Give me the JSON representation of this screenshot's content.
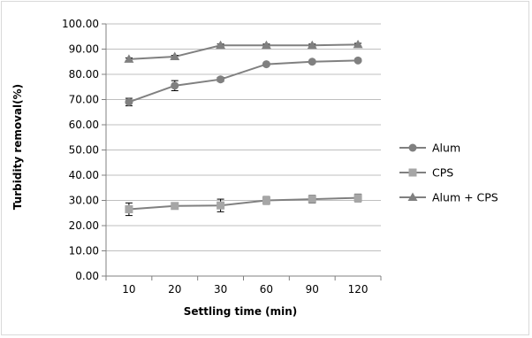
{
  "chart_data": {
    "type": "line",
    "title": "",
    "xlabel": "Settling time (min)",
    "ylabel": "Turbidity removal(%)",
    "categories": [
      "10",
      "20",
      "30",
      "60",
      "90",
      "120"
    ],
    "ylim": [
      0,
      100
    ],
    "yticks": [
      "0.00",
      "10.00",
      "20.00",
      "30.00",
      "40.00",
      "50.00",
      "60.00",
      "70.00",
      "80.00",
      "90.00",
      "100.00"
    ],
    "grid": true,
    "legend_position": "right",
    "series": [
      {
        "name": "Alum",
        "marker": "circle",
        "color": "#808080",
        "values": [
          69.0,
          75.5,
          78.0,
          84.0,
          85.0,
          85.5
        ],
        "error": [
          1.5,
          2.0,
          0.8,
          0.5,
          0.5,
          0.5
        ]
      },
      {
        "name": "CPS",
        "marker": "square",
        "color": "#a6a6a6",
        "values": [
          26.5,
          27.8,
          28.0,
          30.0,
          30.5,
          31.0
        ],
        "error": [
          2.5,
          1.0,
          2.5,
          1.5,
          1.5,
          1.5
        ]
      },
      {
        "name": "Alum + CPS",
        "marker": "triangle",
        "color": "#808080",
        "values": [
          86.0,
          87.0,
          91.5,
          91.5,
          91.5,
          91.8
        ],
        "error": [
          0.5,
          0.5,
          0.5,
          0.5,
          0.5,
          0.5
        ]
      }
    ]
  }
}
